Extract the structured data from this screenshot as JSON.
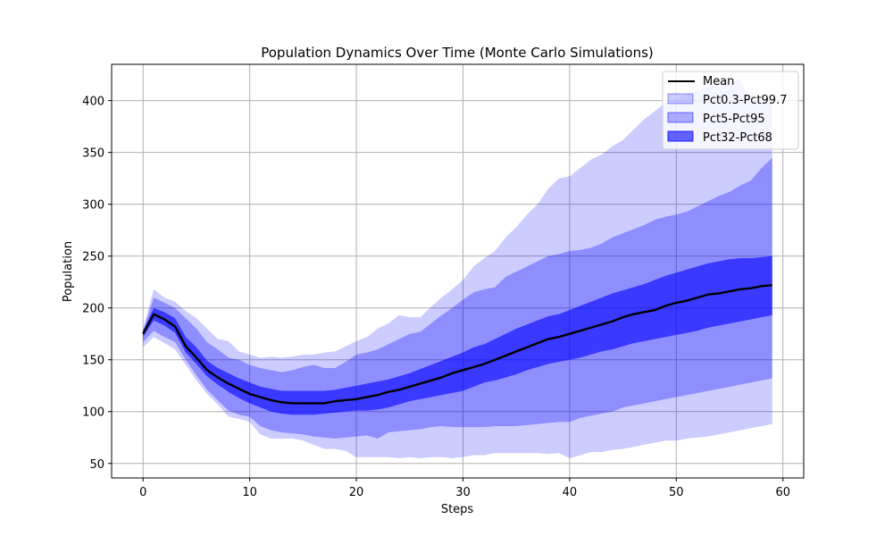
{
  "chart_data": {
    "type": "area",
    "title": "Population Dynamics Over Time (Monte Carlo Simulations)",
    "xlabel": "Steps",
    "ylabel": "Population",
    "xlim": [
      -2.95,
      61.95
    ],
    "ylim": [
      36,
      435
    ],
    "x_ticks": [
      0,
      10,
      20,
      30,
      40,
      50,
      60
    ],
    "y_ticks": [
      50,
      100,
      150,
      200,
      250,
      300,
      350,
      400
    ],
    "grid": true,
    "legend_position": "top-right",
    "colors": {
      "mean": "#000000",
      "band": "#0000ff",
      "grid": "#b0b0b0"
    },
    "mean": {
      "name": "Mean",
      "x": [
        0,
        1,
        2,
        3,
        4,
        5,
        6,
        7,
        8,
        9,
        10,
        11,
        12,
        13,
        14,
        15,
        16,
        17,
        18,
        19,
        20,
        21,
        22,
        23,
        24,
        25,
        26,
        27,
        28,
        29,
        30,
        31,
        32,
        33,
        34,
        35,
        36,
        37,
        38,
        39,
        40,
        41,
        42,
        43,
        44,
        45,
        46,
        47,
        48,
        49,
        50,
        51,
        52,
        53,
        54,
        55,
        56,
        57,
        58,
        59
      ],
      "values": [
        175,
        194,
        189,
        182,
        163,
        152,
        140,
        133,
        127,
        122,
        117,
        114,
        111,
        109,
        108,
        108,
        108,
        108,
        110,
        111,
        112,
        114,
        116,
        119,
        121,
        124,
        127,
        130,
        133,
        137,
        140,
        143,
        146,
        150,
        154,
        158,
        162,
        166,
        170,
        172,
        175,
        178,
        181,
        184,
        187,
        191,
        194,
        196,
        198,
        202,
        205,
        207,
        210,
        213,
        214,
        216,
        218,
        219,
        221,
        222
      ]
    },
    "bands": [
      {
        "name": "Pct0.3-Pct99.7",
        "opacity": 0.2,
        "lower": [
          162,
          172,
          166,
          160,
          145,
          130,
          117,
          107,
          95,
          93,
          90,
          78,
          74,
          74,
          74,
          72,
          68,
          64,
          64,
          62,
          56,
          56,
          56,
          56,
          55,
          56,
          55,
          56,
          56,
          55,
          56,
          58,
          58,
          60,
          60,
          60,
          60,
          60,
          59,
          60,
          55,
          58,
          61,
          61,
          63,
          64,
          66,
          68,
          70,
          72,
          72,
          74,
          75,
          76,
          78,
          80,
          82,
          84,
          86,
          88
        ],
        "upper": [
          180,
          218,
          210,
          206,
          197,
          190,
          180,
          170,
          168,
          158,
          155,
          152,
          153,
          152,
          153,
          155,
          155,
          157,
          158,
          163,
          168,
          172,
          180,
          185,
          193,
          191,
          191,
          201,
          210,
          218,
          227,
          240,
          248,
          255,
          268,
          278,
          290,
          300,
          315,
          325,
          327,
          335,
          343,
          348,
          356,
          362,
          372,
          382,
          390,
          398,
          402,
          406,
          410,
          414,
          418,
          419,
          420,
          400,
          401,
          401
        ]
      },
      {
        "name": "Pct5-Pct95",
        "opacity": 0.3,
        "lower": [
          167,
          178,
          172,
          167,
          150,
          135,
          121,
          111,
          101,
          97,
          95,
          86,
          82,
          80,
          79,
          78,
          76,
          75,
          74,
          75,
          76,
          77,
          74,
          80,
          81,
          82,
          83,
          85,
          86,
          85,
          85,
          85,
          85,
          86,
          86,
          86,
          87,
          88,
          89,
          90,
          90,
          94,
          96,
          98,
          100,
          104,
          106,
          108,
          110,
          112,
          114,
          116,
          118,
          120,
          122,
          124,
          126,
          128,
          130,
          132
        ],
        "upper": [
          178,
          210,
          205,
          200,
          190,
          180,
          167,
          160,
          152,
          150,
          145,
          142,
          140,
          138,
          140,
          143,
          145,
          142,
          142,
          148,
          155,
          157,
          160,
          165,
          170,
          175,
          177,
          185,
          193,
          200,
          208,
          215,
          218,
          220,
          230,
          235,
          240,
          245,
          250,
          252,
          255,
          256,
          258,
          262,
          268,
          272,
          276,
          280,
          285,
          288,
          290,
          293,
          298,
          303,
          308,
          312,
          318,
          323,
          335,
          345
        ]
      },
      {
        "name": "Pct32-Pct68",
        "opacity": 0.6,
        "lower": [
          172,
          188,
          183,
          176,
          157,
          146,
          134,
          126,
          119,
          113,
          108,
          104,
          100,
          98,
          97,
          97,
          97,
          98,
          99,
          100,
          101,
          101,
          102,
          104,
          107,
          110,
          112,
          114,
          116,
          118,
          120,
          124,
          128,
          130,
          133,
          136,
          140,
          143,
          146,
          148,
          150,
          152,
          155,
          158,
          160,
          163,
          166,
          168,
          170,
          172,
          174,
          176,
          178,
          181,
          183,
          185,
          187,
          189,
          191,
          193
        ],
        "upper": [
          178,
          200,
          196,
          190,
          172,
          162,
          149,
          142,
          137,
          132,
          128,
          124,
          122,
          120,
          120,
          120,
          120,
          120,
          121,
          123,
          125,
          127,
          129,
          131,
          134,
          137,
          141,
          145,
          149,
          153,
          157,
          162,
          165,
          170,
          175,
          180,
          184,
          188,
          192,
          194,
          198,
          202,
          206,
          210,
          214,
          217,
          220,
          223,
          227,
          231,
          234,
          237,
          240,
          243,
          245,
          247,
          248,
          248,
          249,
          250
        ]
      }
    ]
  }
}
